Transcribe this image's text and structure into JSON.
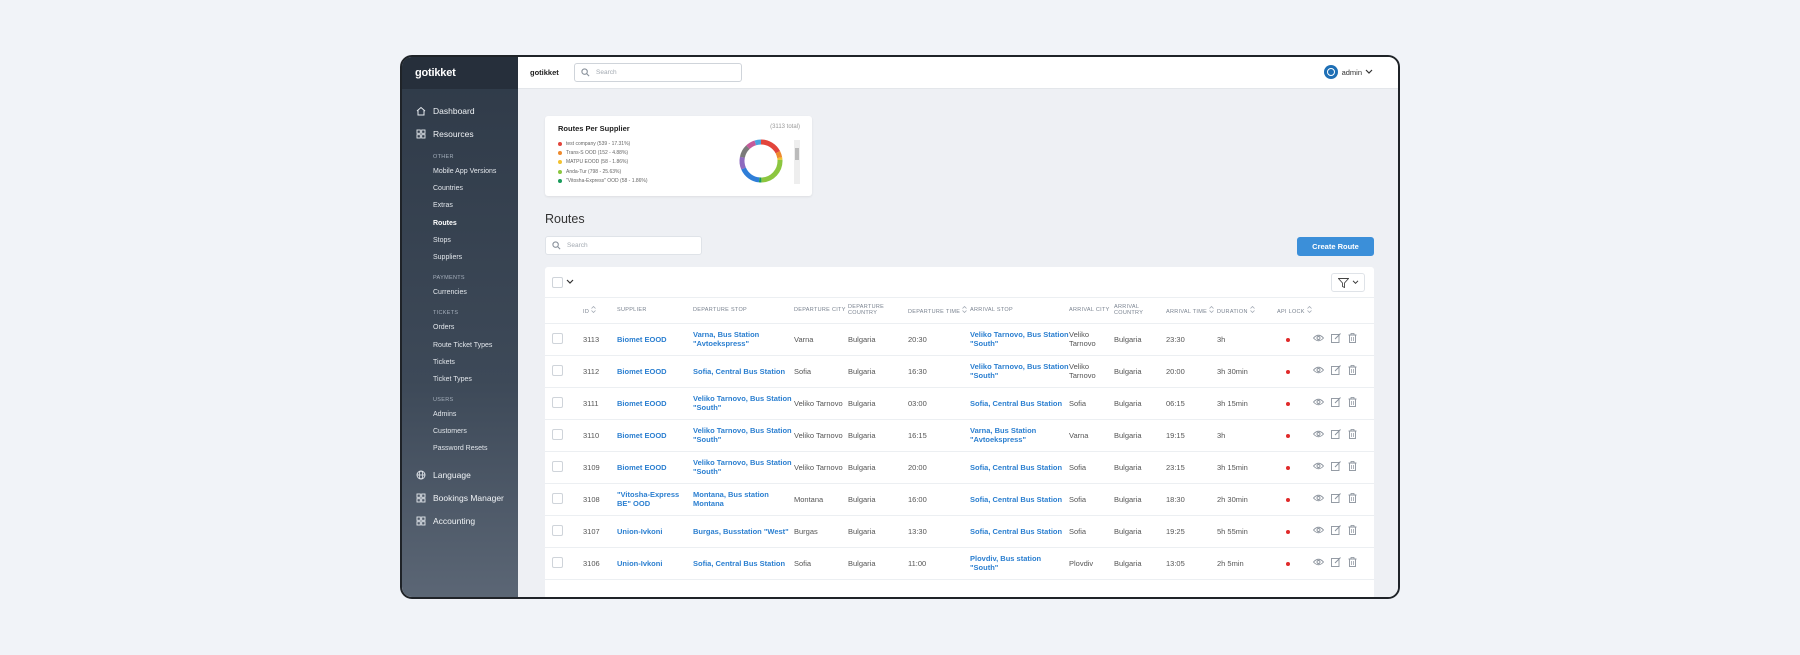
{
  "app": {
    "logo": "gotikket",
    "brand": "gotikket"
  },
  "topbar": {
    "search_placeholder": "Search",
    "user": "admin"
  },
  "sidebar": {
    "main_items": [
      {
        "label": "Dashboard",
        "icon": "home-icon"
      },
      {
        "label": "Resources",
        "icon": "grid-icon"
      }
    ],
    "sections": [
      {
        "title": "OTHER",
        "items": [
          "Mobile App Versions",
          "Countries",
          "Extras",
          "Routes",
          "Stops",
          "Suppliers"
        ]
      },
      {
        "title": "PAYMENTS",
        "items": [
          "Currencies"
        ]
      },
      {
        "title": "TICKETS",
        "items": [
          "Orders",
          "Route Ticket Types",
          "Tickets",
          "Ticket Types"
        ]
      },
      {
        "title": "USERS",
        "items": [
          "Admins",
          "Customers",
          "Password Resets"
        ]
      }
    ],
    "bottom_items": [
      {
        "label": "Language",
        "icon": "globe-icon"
      },
      {
        "label": "Bookings Manager",
        "icon": "grid-icon"
      },
      {
        "label": "Accounting",
        "icon": "grid-icon"
      }
    ],
    "active": "Routes"
  },
  "card": {
    "title": "Routes Per Supplier",
    "total": "(3113 total)",
    "legend": [
      {
        "label": "test company (539 - 17.31%)",
        "color": "#e2453c"
      },
      {
        "label": "Trans-S OOD (152 - 4.88%)",
        "color": "#ee8a2e"
      },
      {
        "label": "MATPU EOOD (58 - 1.86%)",
        "color": "#f2c230"
      },
      {
        "label": "Anda-Tur (798 - 25.63%)",
        "color": "#8cc63f"
      },
      {
        "label": "\"Vitosha-Express\" OOD (58 - 1.86%)",
        "color": "#1a9b5b"
      }
    ]
  },
  "chart_data": {
    "type": "pie",
    "title": "Routes Per Supplier",
    "categories": [
      "test company",
      "Trans-S OOD",
      "MATPU EOOD",
      "Anda-Tur",
      "\"Vitosha-Express\" OOD"
    ],
    "values": [
      539,
      152,
      58,
      798,
      58
    ]
  },
  "page": {
    "title": "Routes",
    "search_placeholder": "Search",
    "create_button": "Create Route"
  },
  "table": {
    "headers": [
      "ID",
      "SUPPLIER",
      "DEPARTURE STOP",
      "DEPARTURE CITY",
      "DEPARTURE COUNTRY",
      "DEPARTURE TIME",
      "ARRIVAL STOP",
      "ARRIVAL CITY",
      "ARRIVAL COUNTRY",
      "ARRIVAL TIME",
      "DURATION",
      "API LOCK"
    ],
    "rows": [
      [
        "3113",
        "Biomet EOOD",
        "Varna, Bus Station \"Avtoekspress\"",
        "Varna",
        "Bulgaria",
        "20:30",
        "Veliko Tarnovo, Bus Station \"South\"",
        "Veliko Tarnovo",
        "Bulgaria",
        "23:30",
        "3h"
      ],
      [
        "3112",
        "Biomet EOOD",
        "Sofia, Central Bus Station",
        "Sofia",
        "Bulgaria",
        "16:30",
        "Veliko Tarnovo, Bus Station \"South\"",
        "Veliko Tarnovo",
        "Bulgaria",
        "20:00",
        "3h 30min"
      ],
      [
        "3111",
        "Biomet EOOD",
        "Veliko Tarnovo, Bus Station \"South\"",
        "Veliko Tarnovo",
        "Bulgaria",
        "03:00",
        "Sofia, Central Bus Station",
        "Sofia",
        "Bulgaria",
        "06:15",
        "3h 15min"
      ],
      [
        "3110",
        "Biomet EOOD",
        "Veliko Tarnovo, Bus Station \"South\"",
        "Veliko Tarnovo",
        "Bulgaria",
        "16:15",
        "Varna, Bus Station \"Avtoekspress\"",
        "Varna",
        "Bulgaria",
        "19:15",
        "3h"
      ],
      [
        "3109",
        "Biomet EOOD",
        "Veliko Tarnovo, Bus Station \"South\"",
        "Veliko Tarnovo",
        "Bulgaria",
        "20:00",
        "Sofia, Central Bus Station",
        "Sofia",
        "Bulgaria",
        "23:15",
        "3h 15min"
      ],
      [
        "3108",
        "\"Vitosha-Express BE\" OOD",
        "Montana, Bus station Montana",
        "Montana",
        "Bulgaria",
        "16:00",
        "Sofia, Central Bus Station",
        "Sofia",
        "Bulgaria",
        "18:30",
        "2h 30min"
      ],
      [
        "3107",
        "Union-Ivkoni",
        "Burgas, Busstation \"West\"",
        "Burgas",
        "Bulgaria",
        "13:30",
        "Sofia, Central Bus Station",
        "Sofia",
        "Bulgaria",
        "19:25",
        "5h 55min"
      ],
      [
        "3106",
        "Union-Ivkoni",
        "Sofia, Central Bus Station",
        "Sofia",
        "Bulgaria",
        "11:00",
        "Plovdiv, Bus station \"South\"",
        "Plovdiv",
        "Bulgaria",
        "13:05",
        "2h 5min"
      ]
    ]
  },
  "colors": {
    "accent": "#3b8fd9",
    "link": "#2b7fd0",
    "lock": "#e02a2a",
    "sidebar": "#2f3a48"
  }
}
